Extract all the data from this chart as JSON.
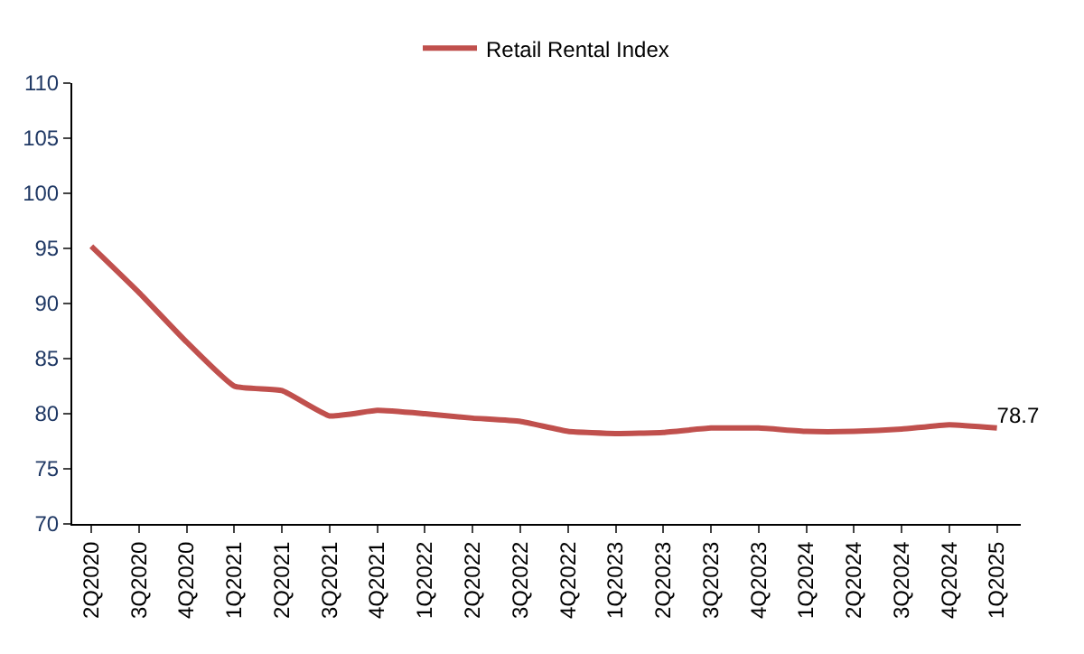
{
  "chart_data": {
    "type": "line",
    "categories": [
      "2Q2020",
      "3Q2020",
      "4Q2020",
      "1Q2021",
      "2Q2021",
      "3Q2021",
      "4Q2021",
      "1Q2022",
      "2Q2022",
      "3Q2022",
      "4Q2022",
      "1Q2023",
      "2Q2023",
      "3Q2023",
      "4Q2023",
      "1Q2024",
      "2Q2024",
      "3Q2024",
      "4Q2024",
      "1Q2025"
    ],
    "series": [
      {
        "name": "Retail Rental Index",
        "color": "#c0504d",
        "values": [
          95.2,
          91.0,
          86.5,
          82.5,
          82.1,
          79.8,
          80.3,
          80.0,
          79.6,
          79.3,
          78.4,
          78.2,
          78.3,
          78.7,
          78.7,
          78.4,
          78.4,
          78.6,
          79.0,
          78.7
        ],
        "value_labels": [
          null,
          null,
          null,
          null,
          null,
          null,
          null,
          null,
          null,
          null,
          null,
          null,
          null,
          null,
          null,
          null,
          null,
          null,
          null,
          "78.7"
        ]
      }
    ],
    "ylim": [
      70,
      110
    ],
    "yticks": [
      70,
      75,
      80,
      85,
      90,
      95,
      100,
      105,
      110
    ],
    "grid": false,
    "legend": "top",
    "marker": "none",
    "line_style": "solid"
  }
}
